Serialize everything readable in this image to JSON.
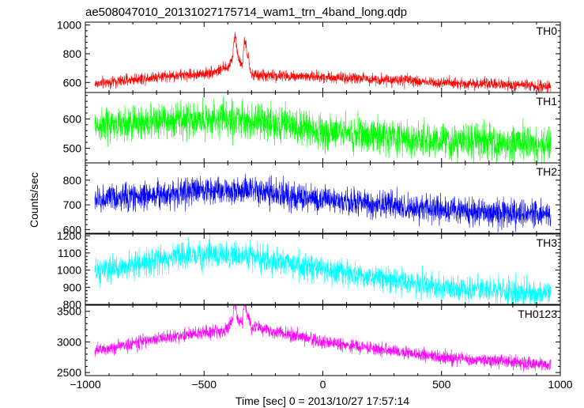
{
  "chart_data": {
    "type": "line",
    "title": "ae508047010_20131027175714_wam1_trn_4band_long.qdp",
    "xlabel": "Time [sec] 0 = 2013/10/27 17:57:14",
    "ylabel": "Counts/sec",
    "grid": false,
    "x_range": [
      -1000,
      1000
    ],
    "x_ticks": [
      -1000,
      -500,
      0,
      500,
      1000
    ],
    "x_tick_labels": [
      "−1000",
      "−500",
      "0",
      "500",
      "1000"
    ],
    "data_x_range": [
      -960,
      960
    ],
    "panels": [
      {
        "name": "TH0",
        "color": "#ff0000",
        "ylim": [
          530,
          1020
        ],
        "yticks": [
          600,
          800,
          1000
        ],
        "ytick_labels": [
          "600",
          "800",
          "1000"
        ],
        "profile_x": [
          -960,
          -700,
          -500,
          -400,
          -380,
          -370,
          -360,
          -340,
          -330,
          -300,
          0,
          500,
          960
        ],
        "profile_y": [
          590,
          640,
          660,
          700,
          780,
          950,
          800,
          700,
          900,
          650,
          640,
          600,
          570
        ],
        "noise": 20
      },
      {
        "name": "TH1",
        "color": "#00ff00",
        "ylim": [
          450,
          690
        ],
        "yticks": [
          500,
          600
        ],
        "ytick_labels": [
          "500",
          "600"
        ],
        "profile_x": [
          -960,
          -500,
          -300,
          0,
          500,
          960
        ],
        "profile_y": [
          575,
          600,
          595,
          560,
          525,
          510
        ],
        "noise": 30
      },
      {
        "name": "TH2",
        "color": "#0000ff",
        "ylim": [
          585,
          870
        ],
        "yticks": [
          600,
          700,
          800
        ],
        "ytick_labels": [
          "600",
          "700",
          "800"
        ],
        "profile_x": [
          -960,
          -500,
          -300,
          0,
          500,
          960
        ],
        "profile_y": [
          720,
          760,
          755,
          720,
          680,
          660
        ],
        "noise": 28
      },
      {
        "name": "TH3",
        "color": "#00ffff",
        "ylim": [
          800,
          1210
        ],
        "yticks": [
          800,
          900,
          1000,
          1100,
          1200
        ],
        "ytick_labels": [
          "800",
          "900",
          "1000",
          "1100",
          "1200"
        ],
        "profile_x": [
          -960,
          -700,
          -500,
          -300,
          0,
          500,
          960
        ],
        "profile_y": [
          980,
          1060,
          1090,
          1080,
          1000,
          900,
          860
        ],
        "noise": 38
      },
      {
        "name": "TH0123",
        "color": "#ff00ff",
        "ylim": [
          2450,
          3600
        ],
        "yticks": [
          2500,
          3000,
          3500
        ],
        "ytick_labels": [
          "2500",
          "3000",
          "3500"
        ],
        "profile_x": [
          -960,
          -700,
          -500,
          -400,
          -380,
          -370,
          -360,
          -340,
          -330,
          -300,
          0,
          500,
          960
        ],
        "profile_y": [
          2850,
          3050,
          3150,
          3200,
          3400,
          3650,
          3400,
          3300,
          3600,
          3250,
          3000,
          2750,
          2620
        ],
        "noise": 55
      }
    ]
  }
}
